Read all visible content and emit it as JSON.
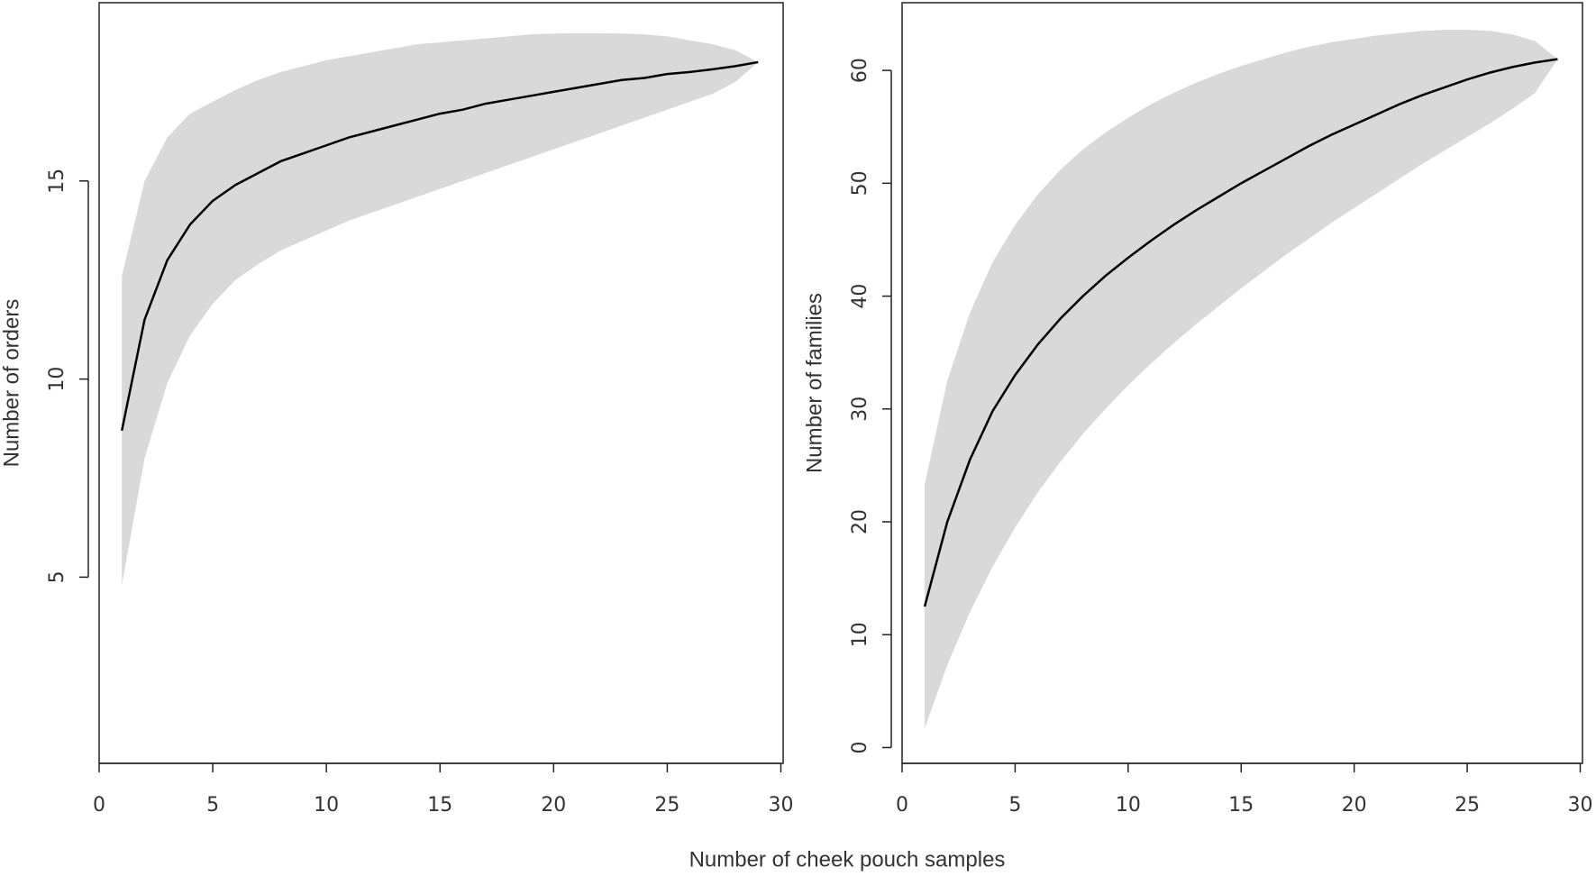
{
  "xlabel": "Number of cheek pouch samples",
  "chart_data": [
    {
      "type": "line",
      "ylabel": "Number of orders",
      "x": [
        1,
        2,
        3,
        4,
        5,
        6,
        7,
        8,
        9,
        10,
        11,
        12,
        13,
        14,
        15,
        16,
        17,
        18,
        19,
        20,
        21,
        22,
        23,
        24,
        25,
        26,
        27,
        28,
        29
      ],
      "values": [
        8.7,
        11.5,
        13.0,
        13.9,
        14.5,
        14.9,
        15.2,
        15.5,
        15.7,
        15.9,
        16.1,
        16.25,
        16.4,
        16.55,
        16.7,
        16.8,
        16.95,
        17.05,
        17.15,
        17.25,
        17.35,
        17.45,
        17.55,
        17.6,
        17.7,
        17.75,
        17.82,
        17.9,
        18.0
      ],
      "upper": [
        12.6,
        15.0,
        16.1,
        16.7,
        17.0,
        17.3,
        17.55,
        17.75,
        17.9,
        18.05,
        18.15,
        18.25,
        18.35,
        18.45,
        18.5,
        18.55,
        18.6,
        18.65,
        18.7,
        18.72,
        18.73,
        18.73,
        18.72,
        18.7,
        18.65,
        18.55,
        18.45,
        18.3,
        18.0
      ],
      "lower": [
        4.8,
        8.0,
        9.9,
        11.1,
        11.9,
        12.5,
        12.9,
        13.25,
        13.5,
        13.75,
        14.0,
        14.2,
        14.4,
        14.6,
        14.8,
        15.0,
        15.2,
        15.4,
        15.6,
        15.8,
        16.0,
        16.2,
        16.4,
        16.6,
        16.8,
        17.0,
        17.2,
        17.5,
        18.0
      ],
      "color": "#000000",
      "band_color": "#d9d9d9",
      "xlim": [
        0,
        30.1
      ],
      "ylim": [
        0.3,
        19.5
      ],
      "xticks": [
        0,
        5,
        10,
        15,
        20,
        25,
        30
      ],
      "yticks": [
        5,
        10,
        15
      ]
    },
    {
      "type": "line",
      "ylabel": "Number of families",
      "x": [
        1,
        2,
        3,
        4,
        5,
        6,
        7,
        8,
        9,
        10,
        11,
        12,
        13,
        14,
        15,
        16,
        17,
        18,
        19,
        20,
        21,
        22,
        23,
        24,
        25,
        26,
        27,
        28,
        29
      ],
      "values": [
        12.5,
        20,
        25.5,
        29.8,
        33,
        35.7,
        38,
        40,
        41.8,
        43.4,
        44.9,
        46.3,
        47.6,
        48.8,
        50,
        51.1,
        52.2,
        53.3,
        54.3,
        55.2,
        56.1,
        57,
        57.8,
        58.5,
        59.2,
        59.8,
        60.3,
        60.7,
        61.0
      ],
      "upper": [
        23.3,
        32.5,
        38.5,
        43,
        46.3,
        49,
        51.2,
        53,
        54.5,
        55.8,
        57,
        58,
        58.9,
        59.7,
        60.4,
        61,
        61.6,
        62.1,
        62.5,
        62.8,
        63.1,
        63.3,
        63.5,
        63.6,
        63.6,
        63.5,
        63.2,
        62.6,
        61.0
      ],
      "lower": [
        1.7,
        7.3,
        12,
        16,
        19.5,
        22.6,
        25.3,
        27.8,
        30,
        32.1,
        34,
        35.8,
        37.5,
        39.1,
        40.7,
        42.2,
        43.7,
        45.1,
        46.5,
        47.8,
        49.1,
        50.4,
        51.7,
        52.9,
        54.1,
        55.3,
        56.6,
        58,
        61
      ],
      "color": "#000000",
      "band_color": "#d9d9d9",
      "xlim": [
        0,
        30.1
      ],
      "ylim": [
        -1.4,
        66
      ],
      "xticks": [
        0,
        5,
        10,
        15,
        20,
        25,
        30
      ],
      "yticks": [
        0,
        10,
        20,
        30,
        40,
        50,
        60
      ]
    }
  ]
}
